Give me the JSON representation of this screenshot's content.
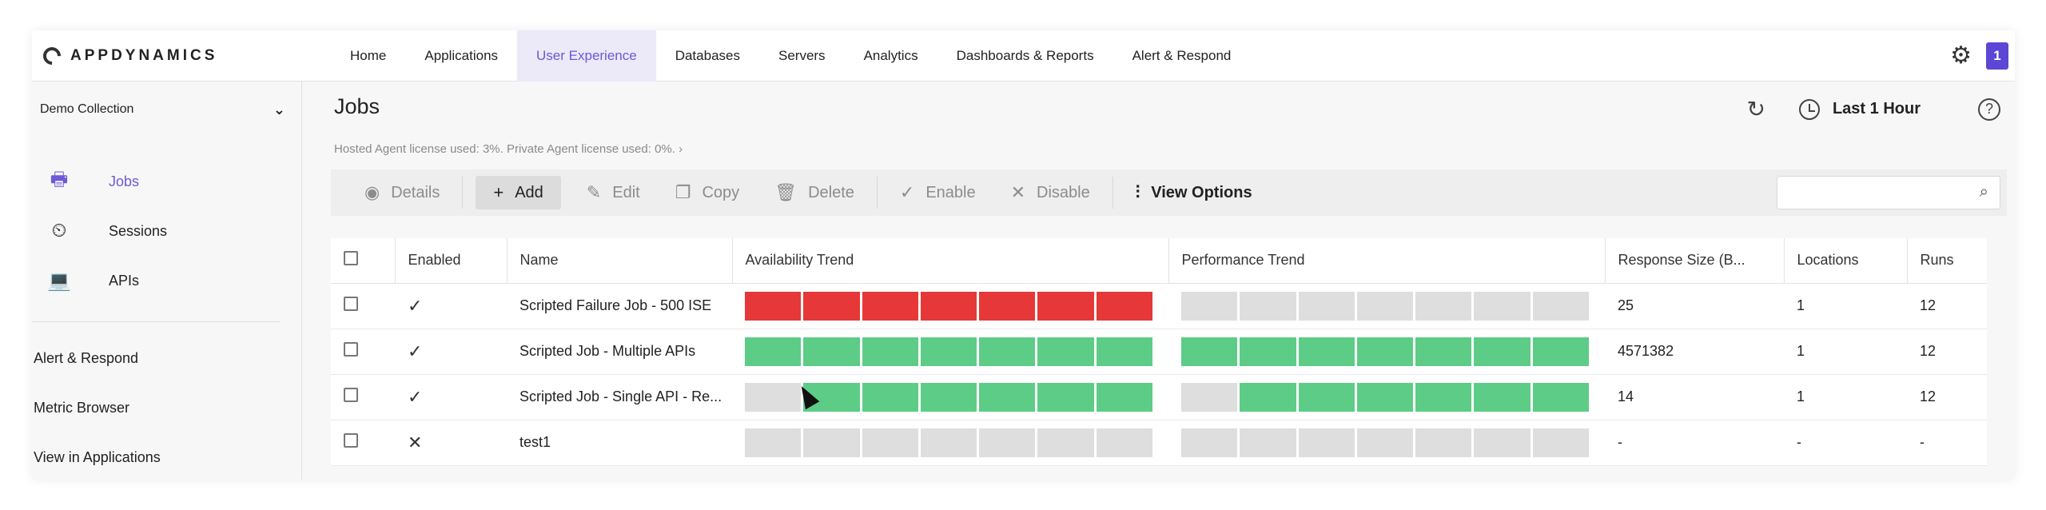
{
  "brand": {
    "logo_text": "APPDYNAMICS"
  },
  "nav": {
    "items": [
      "Home",
      "Applications",
      "User Experience",
      "Databases",
      "Servers",
      "Analytics",
      "Dashboards & Reports",
      "Alert & Respond"
    ],
    "active": "User Experience",
    "notification_count": "1"
  },
  "sidebar": {
    "collection": "Demo Collection",
    "items": [
      {
        "label": "Jobs",
        "icon": "jobs-icon",
        "active": true
      },
      {
        "label": "Sessions",
        "icon": "sessions-icon",
        "active": false
      },
      {
        "label": "APIs",
        "icon": "laptop-icon",
        "active": false
      }
    ],
    "links": [
      "Alert & Respond",
      "Metric Browser",
      "View in Applications"
    ]
  },
  "header": {
    "title": "Jobs",
    "license_text": "Hosted Agent license used: 3%. Private Agent license used: 0%.",
    "time_range": "Last 1 Hour"
  },
  "toolbar": {
    "details": "Details",
    "add": "Add",
    "edit": "Edit",
    "copy": "Copy",
    "delete": "Delete",
    "enable": "Enable",
    "disable": "Disable",
    "view_options": "View Options"
  },
  "table": {
    "columns": [
      "Enabled",
      "Name",
      "Availability Trend",
      "Performance Trend",
      "Response Size (B...",
      "Locations",
      "Runs"
    ],
    "rows": [
      {
        "enabled": true,
        "name": "Scripted Failure Job - 500 ISE",
        "availability": [
          "red",
          "red",
          "red",
          "red",
          "red",
          "red",
          "red"
        ],
        "performance": [
          "gray",
          "gray",
          "gray",
          "gray",
          "gray",
          "gray",
          "gray"
        ],
        "response_size": "25",
        "locations": "1",
        "runs": "12"
      },
      {
        "enabled": true,
        "name": "Scripted Job - Multiple APIs",
        "availability": [
          "green",
          "green",
          "green",
          "green",
          "green",
          "green",
          "green"
        ],
        "performance": [
          "green",
          "green",
          "green",
          "green",
          "green",
          "green",
          "green"
        ],
        "response_size": "4571382",
        "locations": "1",
        "runs": "12"
      },
      {
        "enabled": true,
        "name": "Scripted Job - Single API - Re...",
        "availability": [
          "gray",
          "green",
          "green",
          "green",
          "green",
          "green",
          "green"
        ],
        "performance": [
          "gray",
          "green",
          "green",
          "green",
          "green",
          "green",
          "green"
        ],
        "response_size": "14",
        "locations": "1",
        "runs": "12"
      },
      {
        "enabled": false,
        "name": "test1",
        "availability": [
          "gray",
          "gray",
          "gray",
          "gray",
          "gray",
          "gray",
          "gray"
        ],
        "performance": [
          "gray",
          "gray",
          "gray",
          "gray",
          "gray",
          "gray",
          "gray"
        ],
        "response_size": "-",
        "locations": "-",
        "runs": "-"
      }
    ]
  },
  "colors": {
    "accent": "#6c5ad6",
    "fail": "#e63838",
    "ok": "#5dcc86",
    "nodata": "#dedede"
  }
}
